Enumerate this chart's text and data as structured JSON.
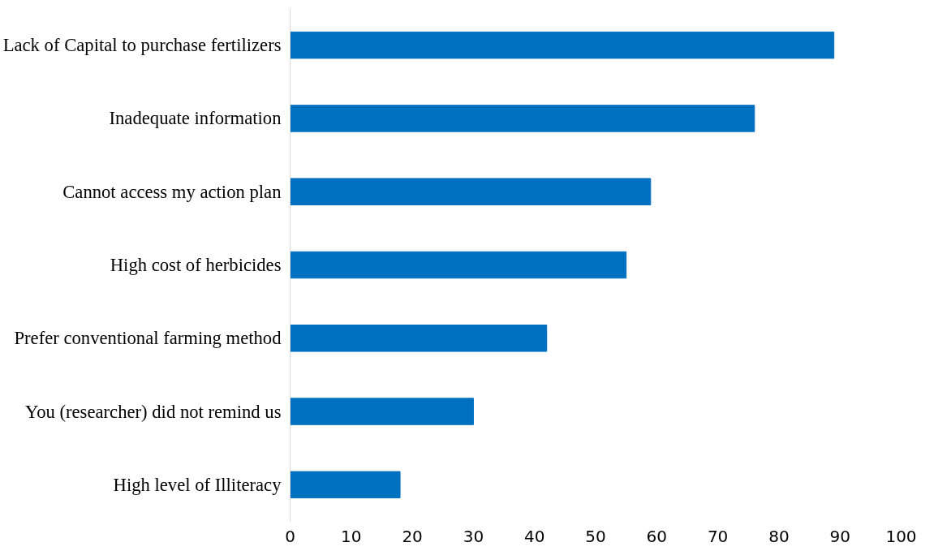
{
  "chart_data": {
    "type": "bar",
    "orientation": "horizontal",
    "categories": [
      "Lack of Capital to purchase fertilizers",
      "Inadequate information",
      "Cannot access my action plan",
      "High cost of herbicides",
      "Prefer conventional farming method",
      "You (researcher) did not remind us",
      "High level of Illiteracy"
    ],
    "values": [
      89,
      76,
      59,
      55,
      42,
      30,
      18
    ],
    "color": "#0070c0",
    "xlim": [
      0,
      100
    ],
    "xticks": [
      0,
      10,
      20,
      30,
      40,
      50,
      60,
      70,
      80,
      90,
      100
    ],
    "grid": false
  }
}
